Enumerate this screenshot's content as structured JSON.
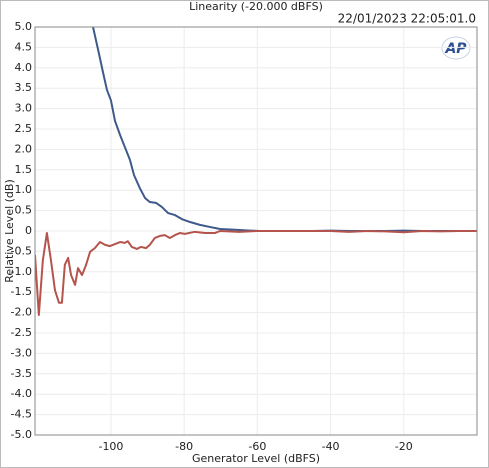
{
  "chart_data": {
    "type": "line",
    "title": "Linearity (-20.000 dBFS)",
    "timestamp": "22/01/2023 22:05:01.0",
    "logo": "AP",
    "xlabel": "Generator Level (dBFS)",
    "ylabel": "Relative Level (dB)",
    "xlim": [
      -120.75,
      0
    ],
    "ylim": [
      -5,
      5
    ],
    "xticks": [
      -100,
      -80,
      -60,
      -40,
      -20
    ],
    "yticks": [
      {
        "value": 5,
        "label": "5.0"
      },
      {
        "value": 4.5,
        "label": "4.5"
      },
      {
        "value": 4,
        "label": "4.0"
      },
      {
        "value": 3.5,
        "label": "3.5"
      },
      {
        "value": 3,
        "label": "3.0"
      },
      {
        "value": 2.5,
        "label": "2.5"
      },
      {
        "value": 2,
        "label": "2.0"
      },
      {
        "value": 1.5,
        "label": "1.5"
      },
      {
        "value": 1,
        "label": "1.0"
      },
      {
        "value": 0.5,
        "label": "0.5"
      },
      0,
      {
        "value": -0.5,
        "label": "-0.5"
      },
      {
        "value": -1,
        "label": "-1.0"
      },
      {
        "value": -1.5,
        "label": "-1.5"
      },
      {
        "value": -2,
        "label": "-2.0"
      },
      {
        "value": -2.5,
        "label": "-2.5"
      },
      {
        "value": -3,
        "label": "-3.0"
      },
      {
        "value": -3.5,
        "label": "-3.5"
      },
      {
        "value": -4,
        "label": "-4.0"
      },
      {
        "value": -4.5,
        "label": "-4.5"
      },
      {
        "value": -5,
        "label": "-5.0"
      }
    ],
    "grid": true,
    "series": [
      {
        "color": "#3d5a8a",
        "x": [
          -104.9,
          -103.5,
          -102.2,
          -101.1,
          -100,
          -98.9,
          -97.5,
          -95.9,
          -94.8,
          -93.7,
          -92.1,
          -90.7,
          -89.4,
          -87.7,
          -86.1,
          -84.4,
          -82.5,
          -80.6,
          -78.4,
          -75.7,
          -73,
          -70.2,
          -66.1,
          -62,
          -59.3,
          -55,
          -50,
          -45,
          -40,
          -35,
          -30,
          -25,
          -20,
          -15,
          -10,
          -5,
          0
        ],
        "values": [
          5.0,
          4.44,
          3.9,
          3.46,
          3.2,
          2.7,
          2.35,
          1.99,
          1.74,
          1.37,
          1.05,
          0.81,
          0.71,
          0.69,
          0.59,
          0.44,
          0.39,
          0.29,
          0.22,
          0.15,
          0.1,
          0.05,
          0.03,
          0.01,
          0,
          0,
          0,
          0,
          0.01,
          0,
          0,
          0,
          0.01,
          0,
          0,
          0,
          0
        ]
      },
      {
        "color": "#b5544c",
        "x": [
          -120.75,
          -119.7,
          -118.6,
          -117.5,
          -116.4,
          -115.3,
          -114.2,
          -113.4,
          -112.6,
          -111.7,
          -110.9,
          -109.8,
          -109,
          -107.9,
          -106.8,
          -105.7,
          -104.4,
          -103,
          -101.6,
          -100.3,
          -98.9,
          -97.5,
          -96.2,
          -95.4,
          -94.3,
          -92.9,
          -91.8,
          -90.4,
          -89.4,
          -88,
          -86.6,
          -85.3,
          -83.9,
          -82.5,
          -81.2,
          -79.8,
          -77.1,
          -74.3,
          -71.6,
          -70.2,
          -65,
          -60,
          -55,
          -50,
          -45,
          -40,
          -35,
          -30,
          -25,
          -20,
          -15,
          -10,
          -5,
          0
        ],
        "values": [
          -0.59,
          -2.06,
          -0.71,
          -0.05,
          -0.71,
          -1.45,
          -1.76,
          -1.76,
          -0.83,
          -0.66,
          -1.08,
          -1.32,
          -0.91,
          -1.08,
          -0.83,
          -0.51,
          -0.42,
          -0.27,
          -0.34,
          -0.37,
          -0.32,
          -0.27,
          -0.29,
          -0.25,
          -0.39,
          -0.44,
          -0.39,
          -0.42,
          -0.34,
          -0.17,
          -0.12,
          -0.1,
          -0.17,
          -0.1,
          -0.05,
          -0.07,
          -0.02,
          -0.05,
          -0.05,
          0,
          -0.02,
          0,
          0,
          0,
          0,
          0,
          -0.02,
          0,
          -0.01,
          -0.03,
          0,
          -0.01,
          0,
          0
        ]
      }
    ]
  }
}
